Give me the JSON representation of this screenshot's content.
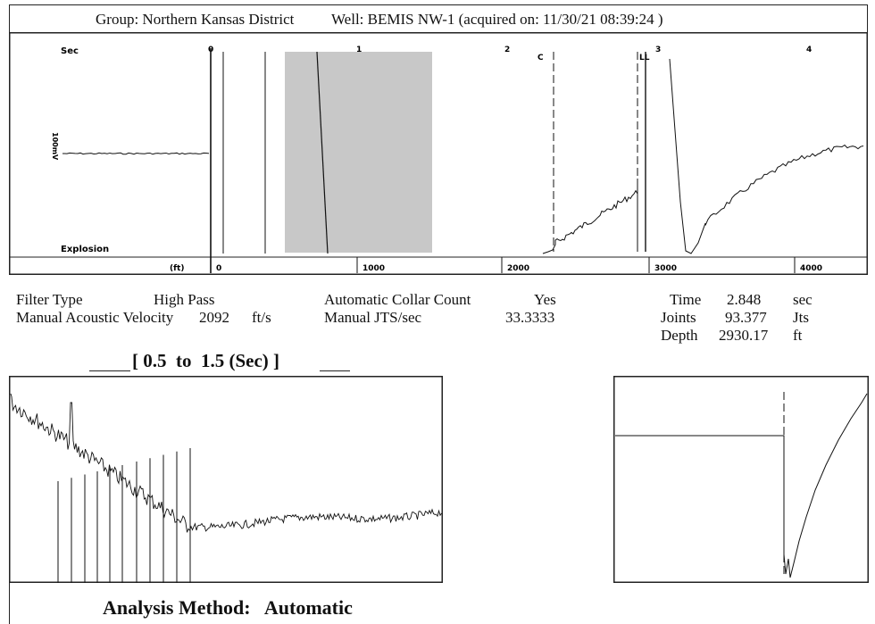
{
  "header": {
    "group": "Group: Northern Kansas District",
    "well": "Well: BEMIS NW-1 (acquired on: 11/30/21 08:39:24 )"
  },
  "top_chart": {
    "time_axis_label": "Sec",
    "time_ticks": [
      "0",
      "1",
      "2",
      "3",
      "4"
    ],
    "depth_axis_label": "(ft)",
    "depth_ticks": [
      "0",
      "1000",
      "2000",
      "3000",
      "4000"
    ],
    "scale_label": "100mV",
    "event_label": "Explosion",
    "marker_c": "C",
    "marker_ll": "LL"
  },
  "parameters": {
    "filter_type_label": "Filter Type",
    "filter_type_value": "High Pass",
    "manual_velocity_label": "Manual Acoustic Velocity",
    "manual_velocity_value": "2092",
    "manual_velocity_unit": "ft/s",
    "auto_collar_label": "Automatic Collar Count",
    "auto_collar_value": "Yes",
    "manual_jts_label": "Manual JTS/sec",
    "manual_jts_value": "33.3333",
    "time_label": "Time",
    "time_value": "2.848",
    "time_unit": "sec",
    "joints_label": "Joints",
    "joints_value": "93.377",
    "joints_unit": "Jts",
    "depth_label": "Depth",
    "depth_value": "2930.17",
    "depth_unit": "ft"
  },
  "zoom_title": "[ 0.5  to  1.5 (Sec) ]",
  "footer": {
    "analysis_method": "Analysis Method:   Automatic"
  },
  "chart_data": [
    {
      "type": "line",
      "name": "acoustic trace",
      "x_axis": {
        "label": "Sec",
        "ticks": [
          0,
          1,
          2,
          3,
          4
        ],
        "range": [
          0,
          4.3
        ]
      },
      "x2_axis": {
        "label": "(ft)",
        "ticks": [
          0,
          1000,
          2000,
          3000,
          4000
        ],
        "range": [
          0,
          4600
        ]
      },
      "annotations": [
        "Explosion",
        "C",
        "LL",
        "100mV"
      ]
    },
    {
      "type": "line",
      "name": "zoom 0.5 to 1.5 sec",
      "title": "[ 0.5  to  1.5 (Sec) ]",
      "x_range": [
        0.5,
        1.5
      ],
      "collar_marker_count": 11
    },
    {
      "type": "line",
      "name": "liquid level detail"
    }
  ],
  "colors": {
    "ink": "#111111",
    "shade": "#c8c8c8"
  }
}
